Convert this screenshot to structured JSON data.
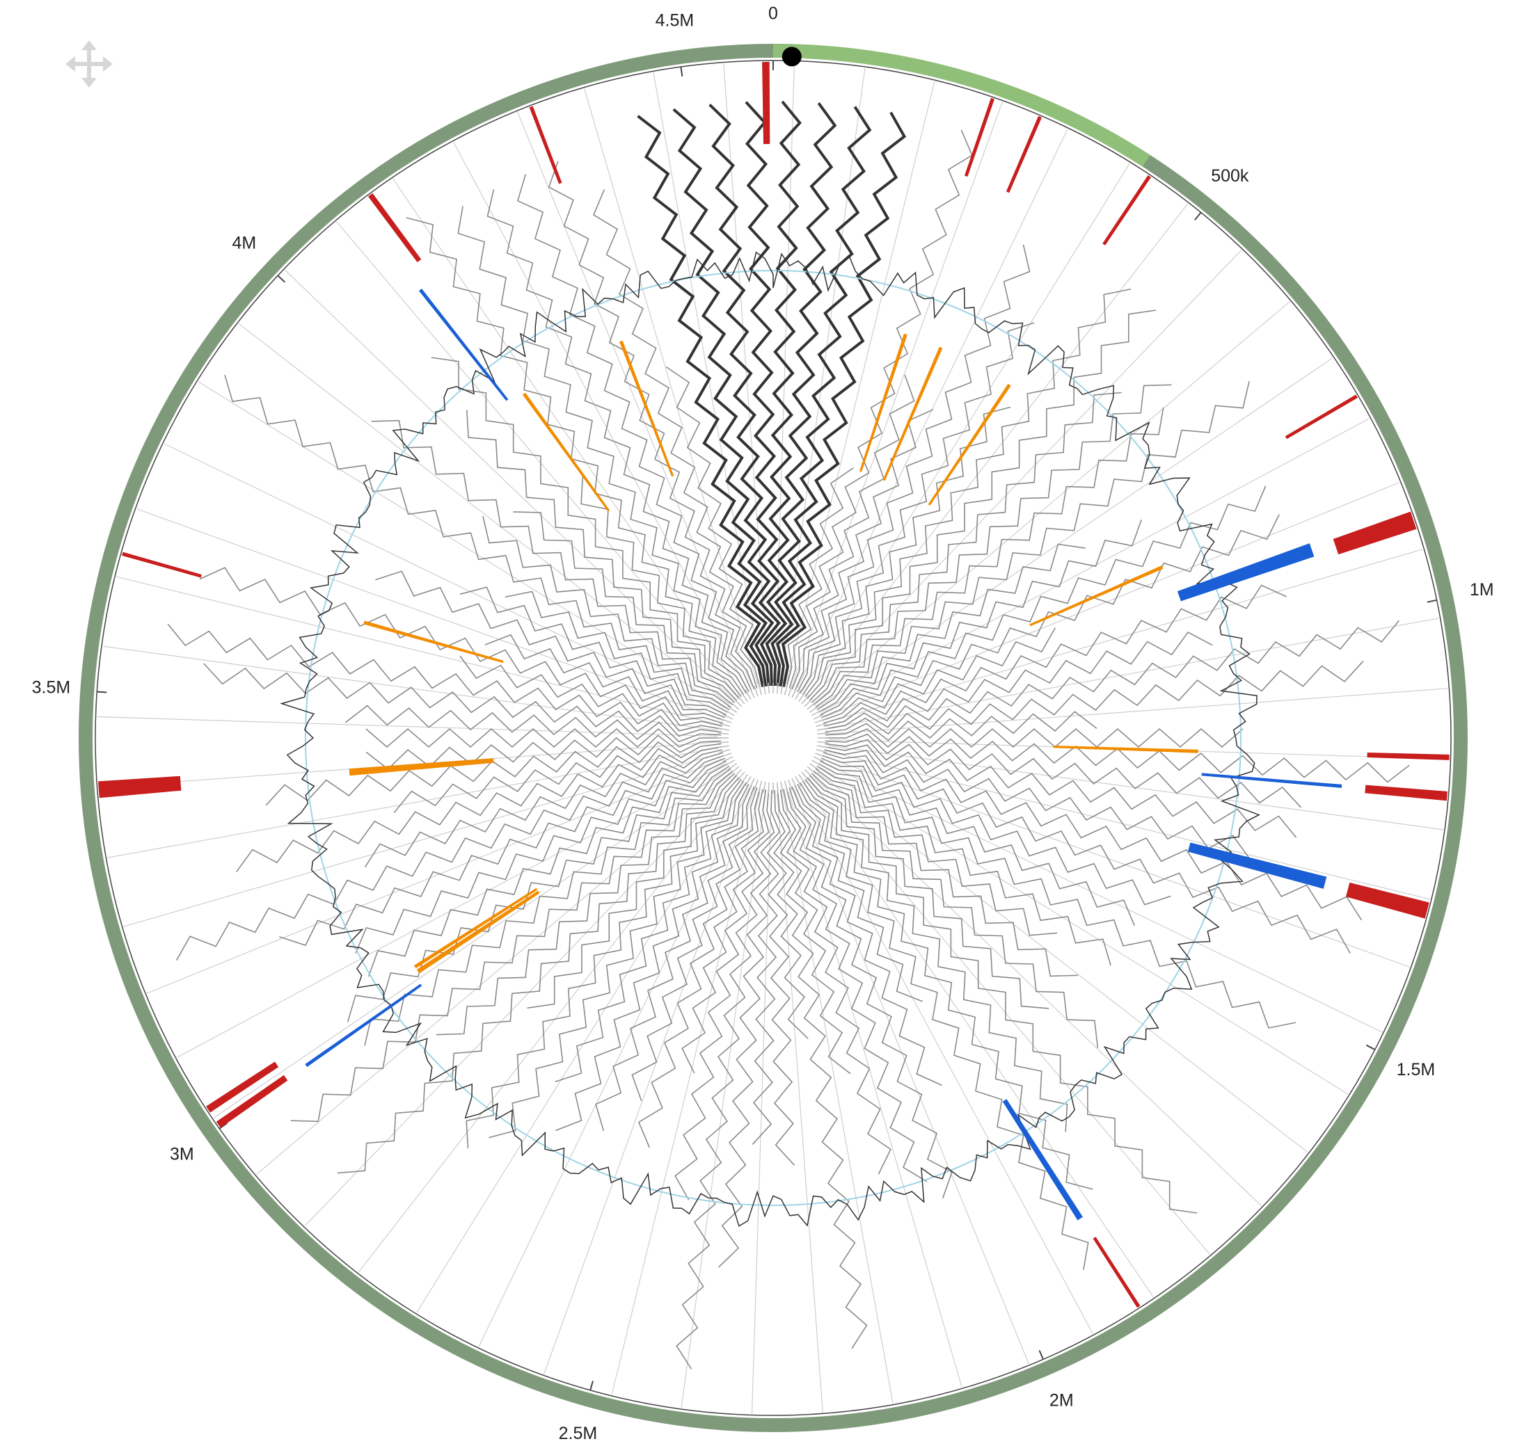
{
  "chart_data": {
    "type": "circular-genome",
    "xlim": [
      0,
      4600000
    ],
    "xticks": [
      0,
      {
        "value": 500000,
        "label": "500k"
      },
      {
        "value": 1000000,
        "label": "1M"
      },
      {
        "value": 1500000,
        "label": "1.5M"
      },
      {
        "value": 2000000,
        "label": "2M"
      },
      {
        "value": 2500000,
        "label": "2.5M"
      },
      {
        "value": 3000000,
        "label": "3M"
      },
      {
        "value": 3500000,
        "label": "3.5M"
      },
      {
        "value": 4000000,
        "label": "4M"
      },
      {
        "value": 4500000,
        "label": "4.5M"
      }
    ],
    "ring_color": "#7f9a7a",
    "highlight": {
      "range": [
        0,
        420000
      ],
      "color": "#8fbf78"
    },
    "cursor": 20000,
    "series": [
      {
        "color": "#c81e1e",
        "values": [
          [
            4588000,
            4596000
          ],
          [
            240000,
            244000
          ],
          [
            295000,
            299000
          ],
          [
            430000,
            434000
          ],
          [
            760000,
            764000
          ],
          [
            900000,
            920000
          ],
          [
            1168000,
            1174000
          ],
          [
            1208000,
            1218000
          ],
          [
            1330000,
            1348000
          ],
          [
            1880000,
            1884000
          ],
          [
            3000000,
            3008000
          ],
          [
            3020000,
            3028000
          ],
          [
            3385000,
            3403000
          ],
          [
            3650000,
            3654000
          ],
          [
            4130000,
            4136000
          ],
          [
            4330000,
            4334000
          ]
        ]
      },
      {
        "color": "#1a5fd6",
        "values": [
          [
            895000,
            913000
          ],
          [
            1210000,
            1214000
          ],
          [
            1330000,
            1346000
          ],
          [
            1880000,
            1888000
          ],
          [
            3000000,
            3004000
          ],
          [
            4110000,
            4114000
          ]
        ]
      },
      {
        "color": "#f28c00",
        "values": [
          [
            230000,
            234000
          ],
          [
            295000,
            299000
          ],
          [
            430000,
            433000
          ],
          [
            845000,
            849000
          ],
          [
            1170000,
            1176000
          ],
          [
            3020000,
            3028000
          ],
          [
            3032000,
            3035000
          ],
          [
            3385000,
            3397000
          ],
          [
            3650000,
            3653000
          ],
          [
            4140000,
            4143000
          ],
          [
            4330000,
            4334000
          ]
        ]
      }
    ]
  }
}
